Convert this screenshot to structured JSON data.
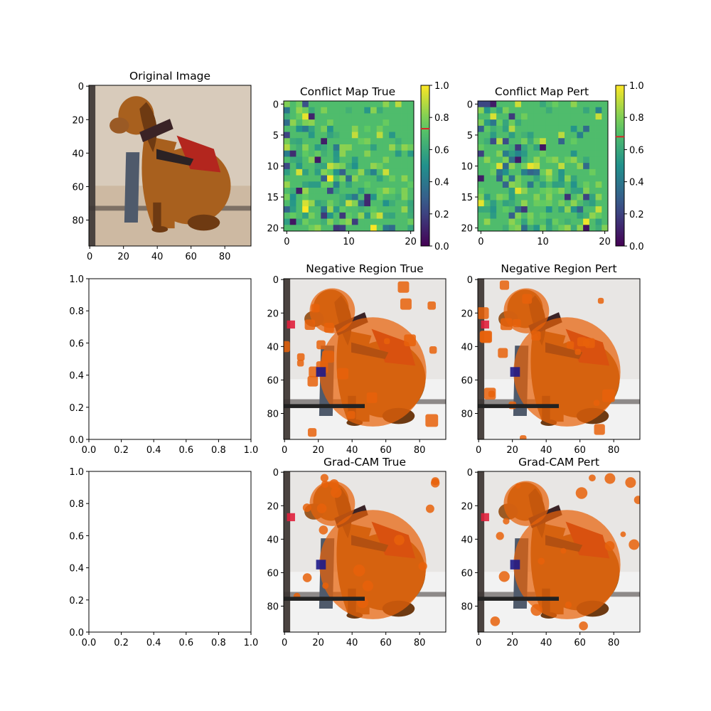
{
  "figure": {
    "background": "#ffffff"
  },
  "chart_data": [
    {
      "type": "image",
      "title": "Original Image",
      "content": "photo of a bloodhound dog sitting, wearing a red harness",
      "xticks": [
        0,
        20,
        40,
        60,
        80
      ],
      "yticks": [
        0,
        20,
        40,
        60,
        80
      ],
      "xlim": [
        -0.5,
        95.5
      ],
      "ylim": [
        95.5,
        -0.5
      ]
    },
    {
      "type": "heatmap",
      "title": "Conflict Map True",
      "grid_size": [
        21,
        21
      ],
      "base_value": 0.69,
      "seed": 7,
      "colormap": "viridis",
      "xticks": [
        0,
        10,
        20
      ],
      "yticks": [
        0,
        5,
        10,
        15,
        20
      ],
      "colorbar": {
        "ticks": [
          "0.0",
          "0.2",
          "0.4",
          "0.6",
          "0.8",
          "1.0"
        ],
        "marker_value": 0.73,
        "marker_color": "#d62728"
      }
    },
    {
      "type": "heatmap",
      "title": "Conflict Map Pert",
      "grid_size": [
        21,
        21
      ],
      "base_value": 0.69,
      "seed": 19,
      "colormap": "viridis",
      "xticks": [
        0,
        10,
        20
      ],
      "yticks": [
        0,
        5,
        10,
        15,
        20
      ],
      "colorbar": {
        "ticks": [
          "0.0",
          "0.2",
          "0.4",
          "0.6",
          "0.8",
          "1.0"
        ],
        "marker_value": 0.68,
        "marker_color": "#d62728"
      }
    },
    {
      "type": "empty",
      "title": "",
      "xticks": [
        "0.0",
        "0.2",
        "0.4",
        "0.6",
        "0.8",
        "1.0"
      ],
      "yticks": [
        "0.0",
        "0.2",
        "0.4",
        "0.6",
        "0.8",
        "1.0"
      ],
      "xlim": [
        0,
        1
      ],
      "ylim": [
        0,
        1
      ]
    },
    {
      "type": "image",
      "title": "Negative Region True",
      "content": "dog photo with orange negative-region overlay",
      "xticks": [
        0,
        20,
        40,
        60,
        80
      ],
      "yticks": [
        0,
        20,
        40,
        60,
        80
      ],
      "overlay_color": "#e8620a",
      "seed": 3
    },
    {
      "type": "image",
      "title": "Negative Region Pert",
      "content": "dog photo with orange negative-region overlay",
      "xticks": [
        0,
        20,
        40,
        60,
        80
      ],
      "yticks": [
        0,
        20,
        40,
        60,
        80
      ],
      "overlay_color": "#e8620a",
      "seed": 11
    },
    {
      "type": "empty",
      "title": "",
      "xticks": [
        "0.0",
        "0.2",
        "0.4",
        "0.6",
        "0.8",
        "1.0"
      ],
      "yticks": [
        "0.0",
        "0.2",
        "0.4",
        "0.6",
        "0.8",
        "1.0"
      ],
      "xlim": [
        0,
        1
      ],
      "ylim": [
        0,
        1
      ]
    },
    {
      "type": "image",
      "title": "Grad-CAM True",
      "content": "dog photo with orange Grad-CAM overlay",
      "xticks": [
        0,
        20,
        40,
        60,
        80
      ],
      "yticks": [
        0,
        20,
        40,
        60,
        80
      ],
      "overlay_color": "#e8620a",
      "seed": 23
    },
    {
      "type": "image",
      "title": "Grad-CAM Pert",
      "content": "dog photo with orange Grad-CAM overlay",
      "xticks": [
        0,
        20,
        40,
        60,
        80
      ],
      "yticks": [
        0,
        20,
        40,
        60,
        80
      ],
      "overlay_color": "#e8620a",
      "seed": 31
    }
  ]
}
